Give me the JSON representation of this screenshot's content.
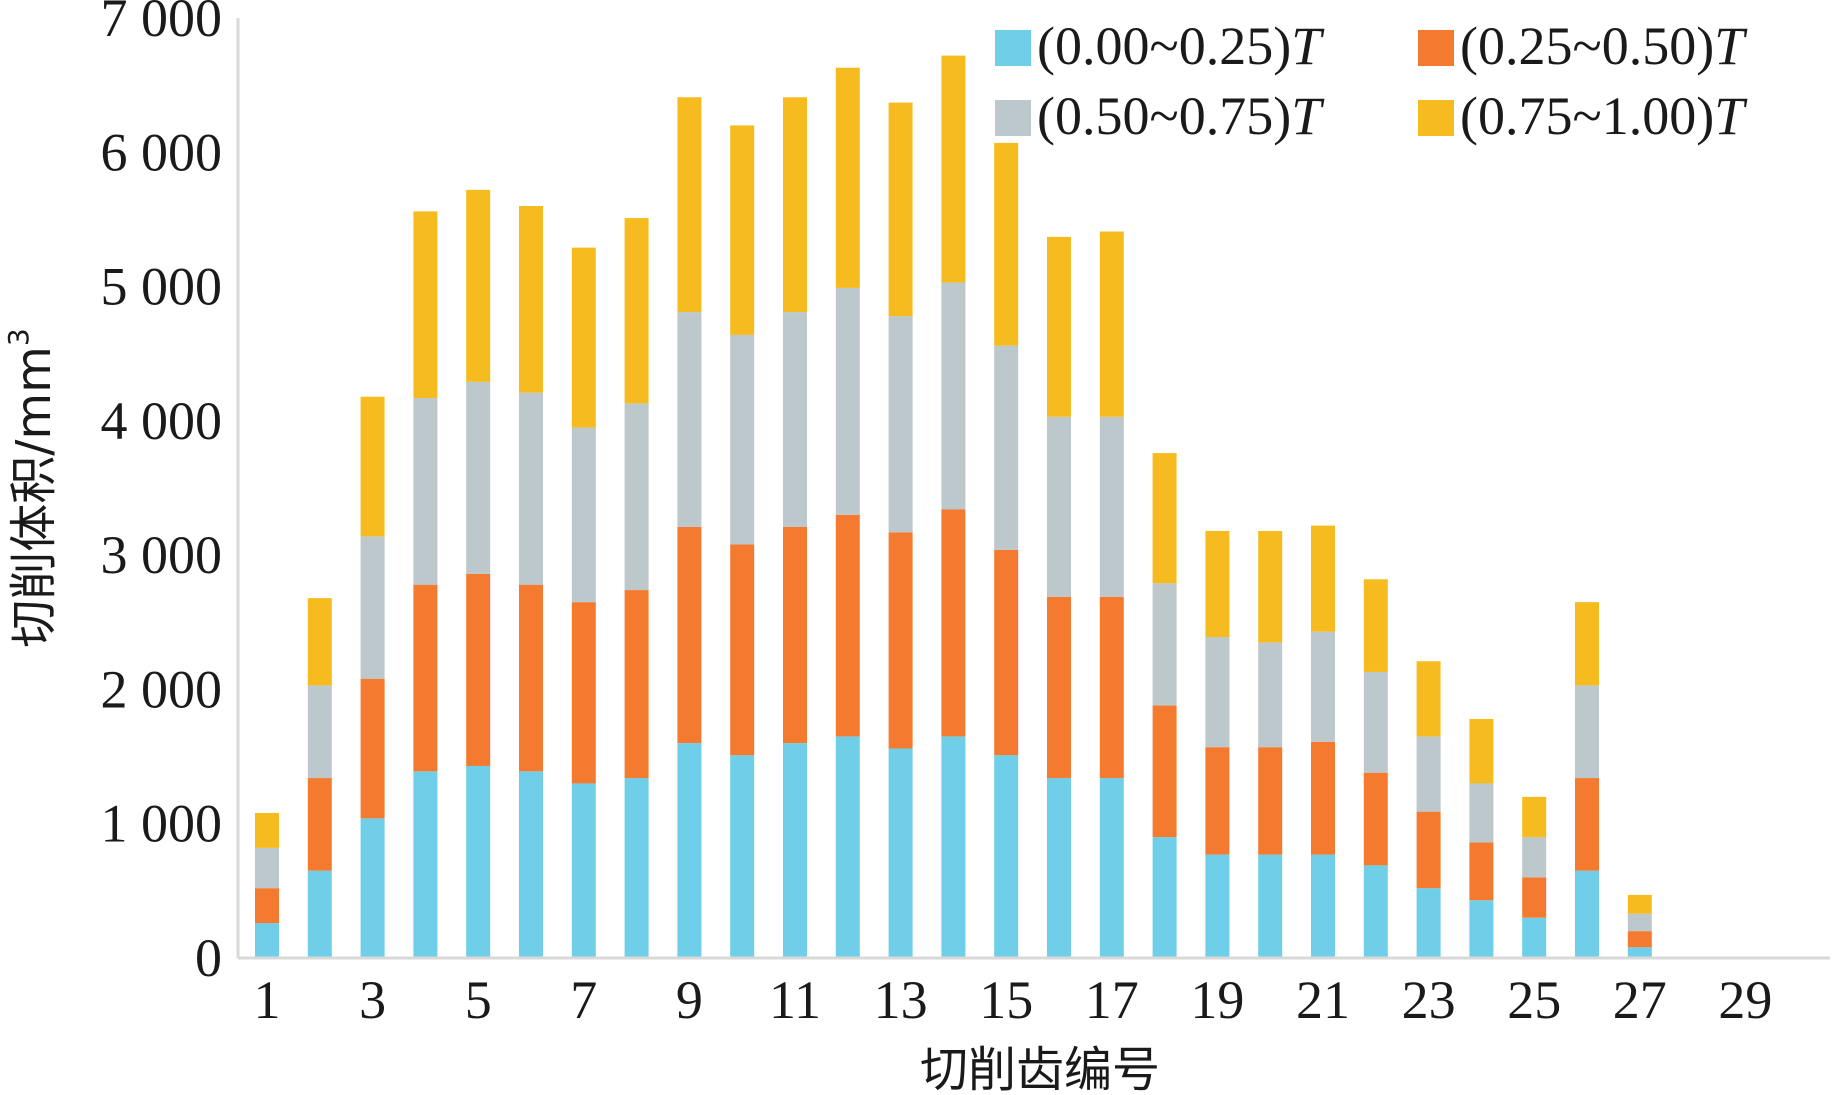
{
  "chart_data": {
    "type": "bar",
    "stacked": true,
    "title": "",
    "xlabel": "切削齿编号",
    "ylabel": "切削体积/mm",
    "ylabel_superscript": "3",
    "ylim": [
      0,
      7000
    ],
    "yticks": [
      0,
      1000,
      2000,
      3000,
      4000,
      5000,
      6000,
      7000
    ],
    "ytick_labels": [
      "0",
      "1 000",
      "2 000",
      "3 000",
      "4 000",
      "5 000",
      "6 000",
      "7 000"
    ],
    "xtick_labels": [
      "1",
      "3",
      "5",
      "7",
      "9",
      "11",
      "13",
      "15",
      "17",
      "19",
      "21",
      "23",
      "25",
      "27",
      "29"
    ],
    "categories": [
      1,
      2,
      3,
      4,
      5,
      6,
      7,
      8,
      9,
      10,
      11,
      12,
      13,
      14,
      15,
      16,
      17,
      18,
      19,
      20,
      21,
      22,
      23,
      24,
      25,
      26,
      27,
      28,
      29
    ],
    "series": [
      {
        "name": "(0.00~0.25)T",
        "range": "(0.00~0.25)",
        "unit": "T",
        "color": "#6fcfe9",
        "values": [
          260,
          650,
          1040,
          1390,
          1430,
          1390,
          1300,
          1340,
          1600,
          1510,
          1600,
          1650,
          1560,
          1650,
          1510,
          1340,
          1340,
          900,
          770,
          770,
          770,
          690,
          520,
          430,
          300,
          650,
          80,
          10,
          10
        ]
      },
      {
        "name": "(0.25~0.50)T",
        "range": "(0.25~0.50)",
        "unit": "T",
        "color": "#f47a30",
        "values": [
          260,
          690,
          1040,
          1390,
          1430,
          1390,
          1350,
          1400,
          1610,
          1570,
          1610,
          1650,
          1610,
          1690,
          1530,
          1350,
          1350,
          980,
          800,
          800,
          840,
          690,
          570,
          430,
          300,
          690,
          120,
          0,
          0
        ]
      },
      {
        "name": "(0.50~0.75)T",
        "range": "(0.50~0.75)",
        "unit": "T",
        "color": "#bcc8cc",
        "values": [
          300,
          690,
          1060,
          1390,
          1430,
          1430,
          1300,
          1390,
          1600,
          1560,
          1600,
          1690,
          1610,
          1690,
          1520,
          1340,
          1340,
          910,
          820,
          780,
          820,
          750,
          560,
          440,
          300,
          690,
          130,
          0,
          0
        ]
      },
      {
        "name": "(0.75~1.00)T",
        "range": "(0.75~1.00)",
        "unit": "T",
        "color": "#f6bc1f",
        "values": [
          260,
          650,
          1040,
          1390,
          1430,
          1390,
          1340,
          1380,
          1600,
          1560,
          1600,
          1640,
          1590,
          1690,
          1510,
          1340,
          1380,
          970,
          790,
          830,
          790,
          690,
          560,
          480,
          300,
          620,
          140,
          0,
          0
        ]
      }
    ],
    "legend_position": "top-right",
    "grid": false
  }
}
